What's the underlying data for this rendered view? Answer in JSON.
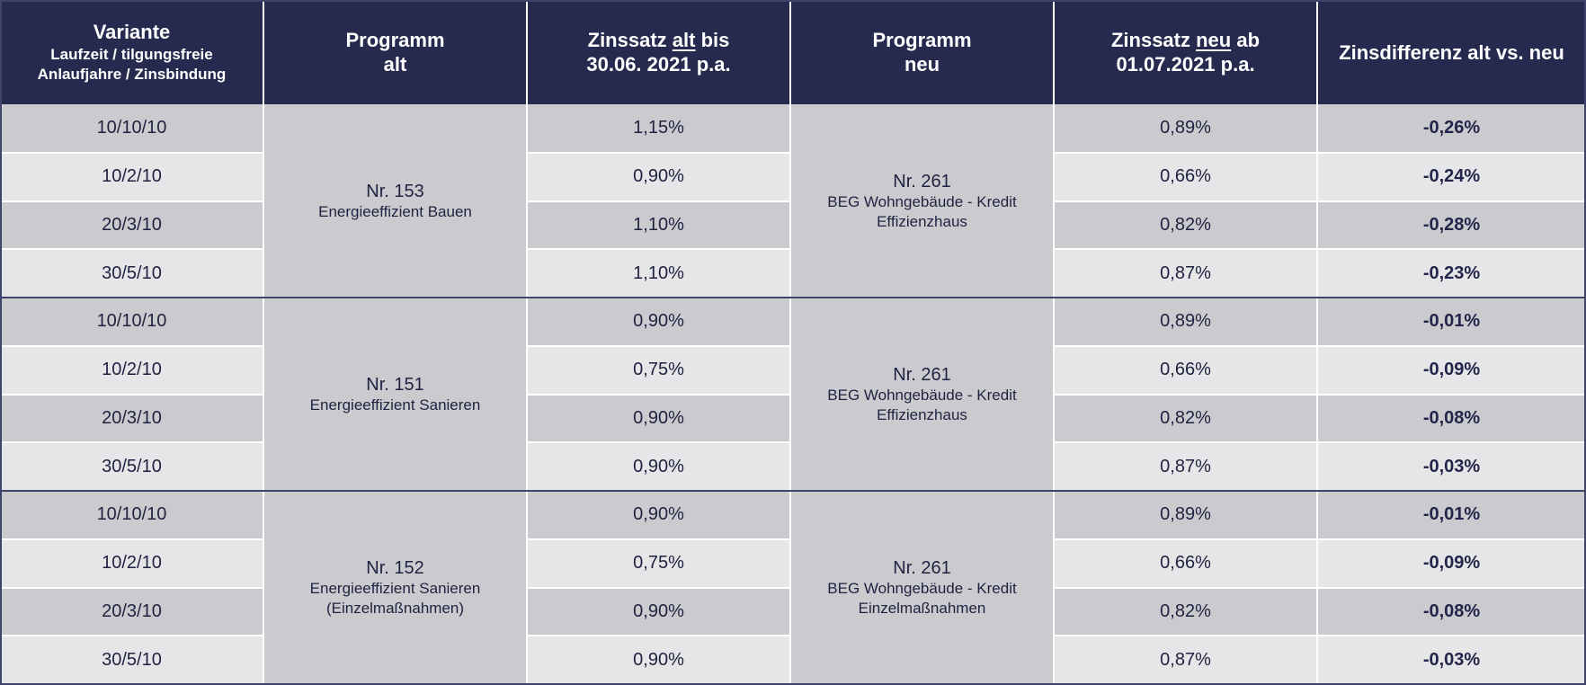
{
  "header": {
    "variante_title": "Variante",
    "variante_sub1": "Laufzeit / tilgungsfreie",
    "variante_sub2": "Anlaufjahre / Zinsbindung",
    "programm_alt_line1": "Programm",
    "programm_alt_line2": "alt",
    "zins_alt_pre": "Zinssatz ",
    "zins_alt_u": "alt",
    "zins_alt_post": " bis",
    "zins_alt_line2": "30.06. 2021 p.a.",
    "programm_neu_line1": "Programm",
    "programm_neu_line2": "neu",
    "zins_neu_pre": "Zinssatz ",
    "zins_neu_u": "neu",
    "zins_neu_post": " ab",
    "zins_neu_line2": "01.07.2021 p.a.",
    "zinsdifferenz": "Zinsdifferenz alt vs. neu"
  },
  "groups": [
    {
      "program_old": {
        "nr": "Nr. 153",
        "lines": [
          "Energieeffizient Bauen"
        ]
      },
      "program_new": {
        "nr": "Nr. 261",
        "lines": [
          "BEG Wohngebäude - Kredit",
          "Effizienzhaus"
        ]
      },
      "rows": [
        {
          "variante": "10/10/10",
          "old": "1,15%",
          "new": "0,89%",
          "diff": "-0,26%"
        },
        {
          "variante": "10/2/10",
          "old": "0,90%",
          "new": "0,66%",
          "diff": "-0,24%"
        },
        {
          "variante": "20/3/10",
          "old": "1,10%",
          "new": "0,82%",
          "diff": "-0,28%"
        },
        {
          "variante": "30/5/10",
          "old": "1,10%",
          "new": "0,87%",
          "diff": "-0,23%"
        }
      ]
    },
    {
      "program_old": {
        "nr": "Nr. 151",
        "lines": [
          "Energieeffizient Sanieren"
        ]
      },
      "program_new": {
        "nr": "Nr. 261",
        "lines": [
          "BEG Wohngebäude - Kredit",
          "Effizienzhaus"
        ]
      },
      "rows": [
        {
          "variante": "10/10/10",
          "old": "0,90%",
          "new": "0,89%",
          "diff": "-0,01%"
        },
        {
          "variante": "10/2/10",
          "old": "0,75%",
          "new": "0,66%",
          "diff": "-0,09%"
        },
        {
          "variante": "20/3/10",
          "old": "0,90%",
          "new": "0,82%",
          "diff": "-0,08%"
        },
        {
          "variante": "30/5/10",
          "old": "0,90%",
          "new": "0,87%",
          "diff": "-0,03%"
        }
      ]
    },
    {
      "program_old": {
        "nr": "Nr. 152",
        "lines": [
          "Energieeffizient Sanieren",
          "(Einzelmaßnahmen)"
        ]
      },
      "program_new": {
        "nr": "Nr. 261",
        "lines": [
          "BEG Wohngebäude - Kredit",
          "Einzelmaßnahmen"
        ]
      },
      "rows": [
        {
          "variante": "10/10/10",
          "old": "0,90%",
          "new": "0,89%",
          "diff": "-0,01%"
        },
        {
          "variante": "10/2/10",
          "old": "0,75%",
          "new": "0,66%",
          "diff": "-0,09%"
        },
        {
          "variante": "20/3/10",
          "old": "0,90%",
          "new": "0,82%",
          "diff": "-0,08%"
        },
        {
          "variante": "30/5/10",
          "old": "0,90%",
          "new": "0,87%",
          "diff": "-0,03%"
        }
      ]
    }
  ]
}
